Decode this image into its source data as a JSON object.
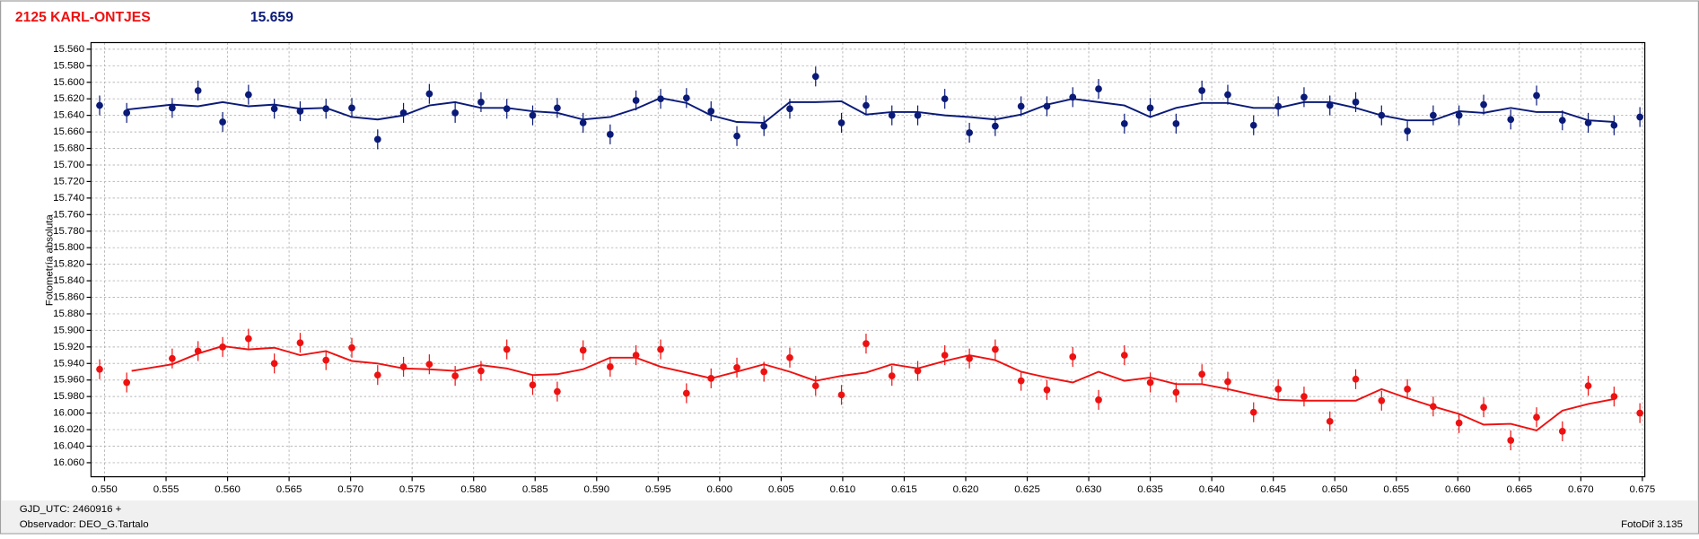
{
  "chart_data": {
    "type": "scatter",
    "title": "2125 KARL-ONTJES",
    "subtitle": "15.659",
    "ylabel": "Fotometría absoluta",
    "footer": {
      "gjd": "GJD_UTC: 2460916 +",
      "observer": "Observador: DEO_G.Tartalo",
      "software": "FotoDif 3.135"
    },
    "xlim": [
      0.5489,
      0.6752
    ],
    "ylim": [
      15.552,
      16.077
    ],
    "y_inverted": true,
    "grid": true,
    "xticks": [
      {
        "value": 0.55,
        "label": "0.550"
      },
      0.555,
      {
        "value": 0.56,
        "label": "0.560"
      },
      0.565,
      {
        "value": 0.57,
        "label": "0.570"
      },
      0.575,
      {
        "value": 0.58,
        "label": "0.580"
      },
      0.585,
      {
        "value": 0.59,
        "label": "0.590"
      },
      0.595,
      {
        "value": 0.6,
        "label": "0.600"
      },
      0.605,
      {
        "value": 0.61,
        "label": "0.610"
      },
      0.615,
      {
        "value": 0.62,
        "label": "0.620"
      },
      0.625,
      {
        "value": 0.63,
        "label": "0.630"
      },
      0.635,
      {
        "value": 0.64,
        "label": "0.640"
      },
      0.645,
      {
        "value": 0.65,
        "label": "0.650"
      },
      0.655,
      {
        "value": 0.66,
        "label": "0.660"
      },
      0.665,
      {
        "value": 0.67,
        "label": "0.670"
      },
      0.675
    ],
    "yticks": [
      {
        "value": 15.56,
        "label": "15.560"
      },
      {
        "value": 15.58,
        "label": "15.580"
      },
      {
        "value": 15.6,
        "label": "15.600"
      },
      {
        "value": 15.62,
        "label": "15.620"
      },
      {
        "value": 15.64,
        "label": "15.640"
      },
      {
        "value": 15.66,
        "label": "15.660"
      },
      {
        "value": 15.68,
        "label": "15.680"
      },
      {
        "value": 15.7,
        "label": "15.700"
      },
      {
        "value": 15.72,
        "label": "15.720"
      },
      {
        "value": 15.74,
        "label": "15.740"
      },
      {
        "value": 15.76,
        "label": "15.760"
      },
      {
        "value": 15.78,
        "label": "15.780"
      },
      {
        "value": 15.8,
        "label": "15.800"
      },
      {
        "value": 15.82,
        "label": "15.820"
      },
      {
        "value": 15.84,
        "label": "15.840"
      },
      {
        "value": 15.86,
        "label": "15.860"
      },
      {
        "value": 15.88,
        "label": "15.880"
      },
      {
        "value": 15.9,
        "label": "15.900"
      },
      {
        "value": 15.92,
        "label": "15.920"
      },
      {
        "value": 15.94,
        "label": "15.940"
      },
      {
        "value": 15.96,
        "label": "15.960"
      },
      {
        "value": 15.98,
        "label": "15.980"
      },
      {
        "value": 16.0,
        "label": "16.000"
      },
      {
        "value": 16.02,
        "label": "16.020"
      },
      {
        "value": 16.04,
        "label": "16.040"
      },
      {
        "value": 16.06,
        "label": "16.060"
      }
    ],
    "series": [
      {
        "color": "#0a1a78",
        "error": 0.012,
        "x": [
          0.5496,
          0.5518,
          0.5555,
          0.5576,
          0.5596,
          0.5617,
          0.5638,
          0.5659,
          0.568,
          0.5701,
          0.5722,
          0.5743,
          0.5764,
          0.5785,
          0.5806,
          0.5827,
          0.5848,
          0.5868,
          0.5889,
          0.5911,
          0.5932,
          0.5952,
          0.5973,
          0.5993,
          0.6014,
          0.6036,
          0.6057,
          0.6078,
          0.6099,
          0.6119,
          0.614,
          0.6161,
          0.6183,
          0.6203,
          0.6224,
          0.6245,
          0.6266,
          0.6287,
          0.6308,
          0.6329,
          0.635,
          0.6371,
          0.6392,
          0.6413,
          0.6434,
          0.6454,
          0.6475,
          0.6496,
          0.6517,
          0.6538,
          0.6559,
          0.658,
          0.6601,
          0.6621,
          0.6643,
          0.6664,
          0.6685,
          0.6706,
          0.6727,
          0.6748
        ],
        "values": [
          15.628,
          15.637,
          15.631,
          15.61,
          15.648,
          15.615,
          15.632,
          15.635,
          15.632,
          15.631,
          15.669,
          15.637,
          15.614,
          15.637,
          15.624,
          15.632,
          15.64,
          15.631,
          15.649,
          15.663,
          15.622,
          15.62,
          15.619,
          15.635,
          15.665,
          15.653,
          15.632,
          15.593,
          15.649,
          15.628,
          15.64,
          15.64,
          15.62,
          15.661,
          15.653,
          15.629,
          15.629,
          15.618,
          15.608,
          15.65,
          15.631,
          15.65,
          15.61,
          15.615,
          15.652,
          15.629,
          15.618,
          15.628,
          15.624,
          15.64,
          15.659,
          15.64,
          15.64,
          15.627,
          15.645,
          15.616,
          15.646,
          15.649,
          15.652,
          15.642
        ]
      },
      {
        "color": "#ee1111",
        "error": 0.012,
        "x": [
          0.5496,
          0.5518,
          0.5555,
          0.5576,
          0.5596,
          0.5617,
          0.5638,
          0.5659,
          0.568,
          0.5701,
          0.5722,
          0.5743,
          0.5764,
          0.5785,
          0.5806,
          0.5827,
          0.5848,
          0.5868,
          0.5889,
          0.5911,
          0.5932,
          0.5952,
          0.5973,
          0.5993,
          0.6014,
          0.6036,
          0.6057,
          0.6078,
          0.6099,
          0.6119,
          0.614,
          0.6161,
          0.6183,
          0.6203,
          0.6224,
          0.6245,
          0.6266,
          0.6287,
          0.6308,
          0.6329,
          0.635,
          0.6371,
          0.6392,
          0.6413,
          0.6434,
          0.6454,
          0.6475,
          0.6496,
          0.6517,
          0.6538,
          0.6559,
          0.658,
          0.6601,
          0.6621,
          0.6643,
          0.6664,
          0.6685,
          0.6706,
          0.6727,
          0.6748
        ],
        "values": [
          15.947,
          15.963,
          15.934,
          15.925,
          15.92,
          15.91,
          15.94,
          15.915,
          15.936,
          15.921,
          15.954,
          15.944,
          15.941,
          15.955,
          15.949,
          15.923,
          15.966,
          15.974,
          15.924,
          15.944,
          15.93,
          15.923,
          15.976,
          15.958,
          15.945,
          15.95,
          15.933,
          15.967,
          15.978,
          15.916,
          15.955,
          15.949,
          15.93,
          15.934,
          15.923,
          15.961,
          15.972,
          15.932,
          15.984,
          15.93,
          15.963,
          15.975,
          15.953,
          15.962,
          15.999,
          15.971,
          15.98,
          16.01,
          15.959,
          15.985,
          15.971,
          15.992,
          16.012,
          15.993,
          16.033,
          16.005,
          16.022,
          15.967,
          15.98,
          16.0
        ]
      }
    ],
    "lines": [
      {
        "color": "#0a1a78",
        "x": [
          0.5518,
          0.5555,
          0.5576,
          0.5596,
          0.5617,
          0.5638,
          0.5659,
          0.568,
          0.5701,
          0.5722,
          0.5743,
          0.5764,
          0.5785,
          0.5806,
          0.5827,
          0.5848,
          0.5868,
          0.5889,
          0.5911,
          0.5932,
          0.5952,
          0.5973,
          0.5993,
          0.6014,
          0.6036,
          0.6057,
          0.6078,
          0.6099,
          0.6119,
          0.614,
          0.6161,
          0.6183,
          0.6203,
          0.6224,
          0.6245,
          0.6266,
          0.6287,
          0.6308,
          0.6329,
          0.635,
          0.6371,
          0.6392,
          0.6413,
          0.6434,
          0.6454,
          0.6475,
          0.6496,
          0.6517,
          0.6538,
          0.6559,
          0.658,
          0.6601,
          0.6621,
          0.6643,
          0.6664,
          0.6685,
          0.6706,
          0.6727
        ],
        "values": [
          15.633,
          15.627,
          15.629,
          15.624,
          15.629,
          15.627,
          15.632,
          15.631,
          15.642,
          15.645,
          15.64,
          15.628,
          15.624,
          15.631,
          15.631,
          15.635,
          15.637,
          15.645,
          15.642,
          15.632,
          15.619,
          15.625,
          15.64,
          15.648,
          15.649,
          15.624,
          15.624,
          15.623,
          15.639,
          15.636,
          15.636,
          15.64,
          15.642,
          15.645,
          15.639,
          15.627,
          15.62,
          15.624,
          15.628,
          15.642,
          15.631,
          15.625,
          15.625,
          15.631,
          15.631,
          15.624,
          15.624,
          15.631,
          15.64,
          15.646,
          15.646,
          15.635,
          15.637,
          15.631,
          15.636,
          15.636,
          15.646,
          15.648
        ]
      },
      {
        "color": "#ee1111",
        "x": [
          0.5522,
          0.5555,
          0.5576,
          0.5596,
          0.5617,
          0.5638,
          0.5659,
          0.568,
          0.5701,
          0.5722,
          0.5743,
          0.5764,
          0.5785,
          0.5806,
          0.5827,
          0.5848,
          0.5868,
          0.5889,
          0.5911,
          0.5932,
          0.5952,
          0.5973,
          0.5993,
          0.6014,
          0.6036,
          0.6057,
          0.6078,
          0.6099,
          0.6119,
          0.614,
          0.6161,
          0.6183,
          0.6203,
          0.6224,
          0.6245,
          0.6266,
          0.6287,
          0.6308,
          0.6329,
          0.635,
          0.6371,
          0.6392,
          0.6413,
          0.6434,
          0.6454,
          0.6475,
          0.6496,
          0.6517,
          0.6538,
          0.6559,
          0.658,
          0.6601,
          0.6621,
          0.6643,
          0.6664,
          0.6685,
          0.6706,
          0.6727
        ],
        "values": [
          15.949,
          15.941,
          15.928,
          15.919,
          15.923,
          15.921,
          15.93,
          15.925,
          15.937,
          15.94,
          15.946,
          15.947,
          15.949,
          15.942,
          15.946,
          15.954,
          15.953,
          15.947,
          15.933,
          15.933,
          15.944,
          15.951,
          15.958,
          15.95,
          15.941,
          15.95,
          15.961,
          15.955,
          15.951,
          15.941,
          15.946,
          15.937,
          15.93,
          15.936,
          15.95,
          15.957,
          15.963,
          15.95,
          15.961,
          15.957,
          15.965,
          15.965,
          15.971,
          15.978,
          15.984,
          15.985,
          15.985,
          15.985,
          15.971,
          15.982,
          15.992,
          16.001,
          16.014,
          16.013,
          16.021,
          15.997,
          15.989,
          15.983
        ]
      }
    ]
  }
}
